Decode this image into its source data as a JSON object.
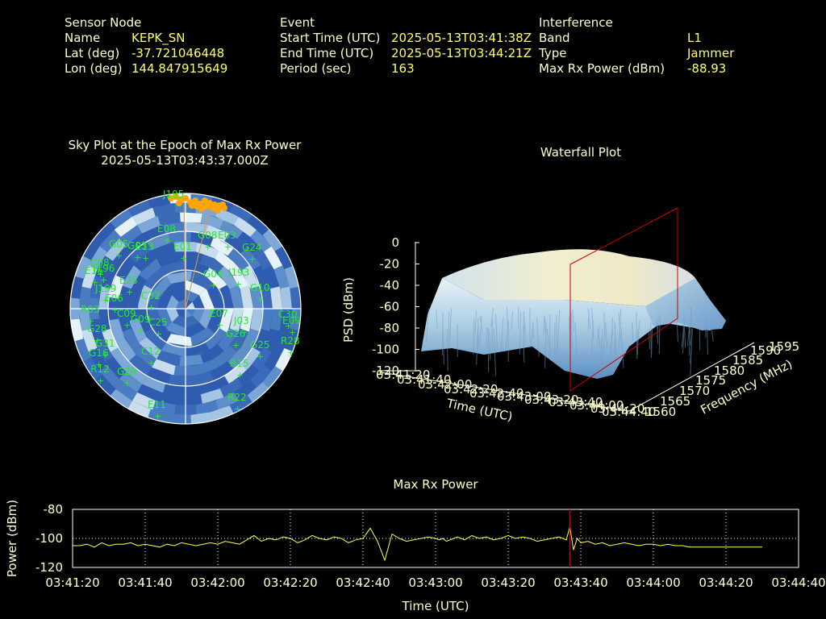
{
  "header": {
    "sensor": {
      "heading": "Sensor Node",
      "name_label": "Name",
      "name_value": "KEPK_SN",
      "lat_label": "Lat (deg)",
      "lat_value": "-37.721046448",
      "lon_label": "Lon (deg)",
      "lon_value": "144.847915649"
    },
    "event": {
      "heading": "Event",
      "start_label": "Start Time (UTC)",
      "start_value": "2025-05-13T03:41:38Z",
      "end_label": "End Time (UTC)",
      "end_value": "2025-05-13T03:44:21Z",
      "period_label": "Period (sec)",
      "period_value": "163"
    },
    "interference": {
      "heading": "Interference",
      "band_label": "Band",
      "band_value": "L1",
      "type_label": "Type",
      "type_value": "Jammer",
      "maxrx_label": "Max Rx Power (dBm)",
      "maxrx_value": "-88.93"
    }
  },
  "colors": {
    "background": "#000000",
    "label_text": "#ffffcc",
    "value_text": "#ffff66",
    "satellite_label": "#22ee22",
    "jammer_marker": "#ffa500",
    "power_line": "#ffff44",
    "epoch_marker": "#cc0000",
    "sky_fill_dark": "#2f5cae",
    "sky_fill_light": "#e6f2fa"
  },
  "chart_data": [
    {
      "type": "scatter",
      "title": "Sky Plot at the Epoch of Max Rx Power",
      "subtitle": "2025-05-13T03:43:37.000Z",
      "jammer_label": "J195",
      "satellites": [
        "J195",
        "E08",
        "G08",
        "E03",
        "G24",
        "J193",
        "C08",
        "E16",
        "G04",
        "J199",
        "G05",
        "E13",
        "C32",
        "G03",
        "C30",
        "E09",
        "G10",
        "E07",
        "G26",
        "C09",
        "G28",
        "R28",
        "R15",
        "G16",
        "G25",
        "R12",
        "E11",
        "R22",
        "E06",
        "G31",
        "C12",
        "G29",
        "R03",
        "E01",
        "E25",
        "J196",
        "C25",
        "G09",
        "J03"
      ],
      "grid": true
    },
    {
      "type": "area",
      "title": "Waterfall Plot",
      "xlabel": "Time (UTC)",
      "ylabel": "Frequency (MHz)",
      "zlabel": "PSD (dBm)",
      "z_ticks": [
        "0",
        "-20",
        "-40",
        "-60",
        "-80",
        "-100",
        "-120"
      ],
      "freq_ticks": [
        "1560",
        "1565",
        "1570",
        "1575",
        "1580",
        "1585",
        "1590",
        "1595"
      ],
      "time_ticks": [
        "03:41:20",
        "03:41:40",
        "03:42:00",
        "03:42:20",
        "03:42:40",
        "03:43:00",
        "03:43:20",
        "03:43:40",
        "03:44:00",
        "03:44:20",
        "03:44:40"
      ]
    },
    {
      "type": "line",
      "title": "Max Rx Power",
      "xlabel": "Time (UTC)",
      "ylabel": "Power (dBm)",
      "ylim": [
        -120,
        -80
      ],
      "y_ticks": [
        "-80",
        "-100",
        "-120"
      ],
      "x_ticks": [
        "03:41:20",
        "03:41:40",
        "03:42:00",
        "03:42:20",
        "03:42:40",
        "03:43:00",
        "03:43:20",
        "03:43:40",
        "03:44:00",
        "03:44:20",
        "03:44:40"
      ],
      "x_range_sec": [
        0,
        200
      ],
      "epoch_marker_sec": 137,
      "grid": true,
      "series": [
        {
          "x": [
            0,
            2,
            4,
            6,
            8,
            10,
            12,
            14,
            16,
            18,
            20,
            22,
            24,
            26,
            28,
            30,
            32,
            34,
            36,
            38,
            40,
            42,
            44,
            46,
            48,
            50,
            52,
            54,
            56,
            58,
            60,
            62,
            64,
            66,
            68,
            70,
            72,
            74,
            76,
            78,
            80,
            82,
            84,
            86,
            88,
            90,
            92,
            94,
            96,
            98,
            100,
            101,
            102,
            103,
            104,
            105,
            106,
            107,
            108,
            110,
            112,
            114,
            116,
            118,
            120,
            122,
            124,
            126,
            128,
            130,
            132,
            134,
            136,
            137,
            138,
            139,
            140,
            142,
            144,
            146,
            148,
            150,
            152,
            154,
            156,
            158,
            160,
            162,
            164,
            166,
            168,
            170,
            175,
            180,
            185,
            190
          ],
          "y": [
            -105,
            -105,
            -104,
            -106,
            -103,
            -105,
            -104,
            -104,
            -103,
            -105,
            -104,
            -105,
            -106,
            -104,
            -105,
            -103,
            -104,
            -105,
            -104,
            -103,
            -104,
            -102,
            -103,
            -104,
            -101,
            -98,
            -102,
            -100,
            -101,
            -99,
            -100,
            -103,
            -101,
            -98,
            -100,
            -101,
            -99,
            -100,
            -103,
            -101,
            -100,
            -93,
            -102,
            -115,
            -97,
            -100,
            -102,
            -101,
            -100,
            -99,
            -100,
            -101,
            -100,
            -102,
            -101,
            -100,
            -99,
            -100,
            -101,
            -98,
            -100,
            -99,
            -101,
            -100,
            -98,
            -100,
            -99,
            -100,
            -102,
            -101,
            -100,
            -99,
            -101,
            -92,
            -108,
            -100,
            -103,
            -102,
            -104,
            -103,
            -105,
            -104,
            -103,
            -104,
            -105,
            -104,
            -104,
            -105,
            -104,
            -105,
            -105,
            -106,
            -106,
            -106,
            -106,
            -106
          ]
        }
      ]
    }
  ]
}
